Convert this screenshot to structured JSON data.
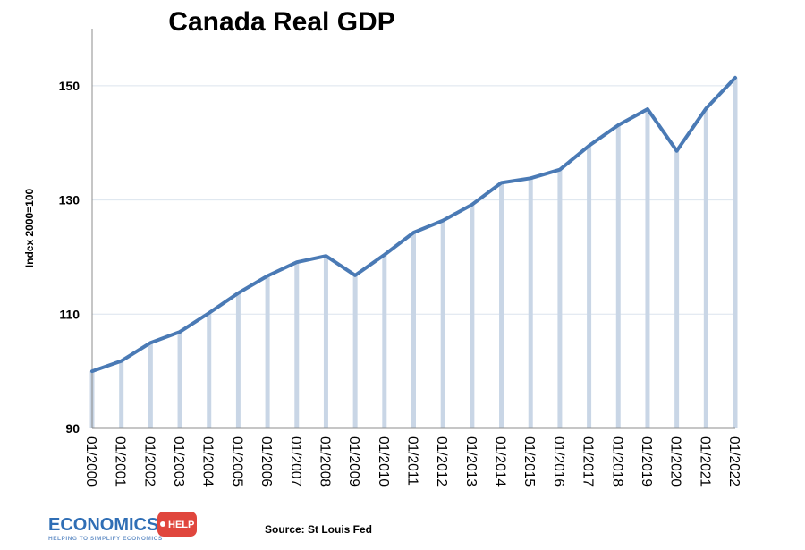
{
  "chart_data": {
    "type": "line",
    "title": "Canada Real GDP",
    "ylabel": "Index 2000=100",
    "xlabel": "",
    "ylim": [
      90,
      160
    ],
    "yticks": [
      90,
      110,
      130,
      150
    ],
    "grid": true,
    "categories": [
      "01/2000",
      "01/2001",
      "01/2002",
      "01/2003",
      "01/2004",
      "01/2005",
      "01/2006",
      "01/2007",
      "01/2008",
      "01/2009",
      "01/2010",
      "01/2011",
      "01/2012",
      "01/2013",
      "01/2014",
      "01/2015",
      "01/2016",
      "01/2017",
      "01/2018",
      "01/2019",
      "01/2020",
      "01/2021",
      "01/2022"
    ],
    "values": [
      100.0,
      101.8,
      105.0,
      106.9,
      110.2,
      113.7,
      116.7,
      119.1,
      120.2,
      116.8,
      120.4,
      124.3,
      126.4,
      129.2,
      133.0,
      133.8,
      135.3,
      139.5,
      143.1,
      145.9,
      138.6,
      146.0,
      151.4
    ],
    "line_color": "#4a7ab5",
    "drop_line_color": "#c9d6e6",
    "source": "Source: St Louis Fed"
  },
  "logo": {
    "text": "ECONOMICS",
    "badge": "HELP",
    "tagline": "HELPING TO SIMPLIFY ECONOMICS",
    "color": "#2f6eb5",
    "badge_color": "#e0463d"
  }
}
